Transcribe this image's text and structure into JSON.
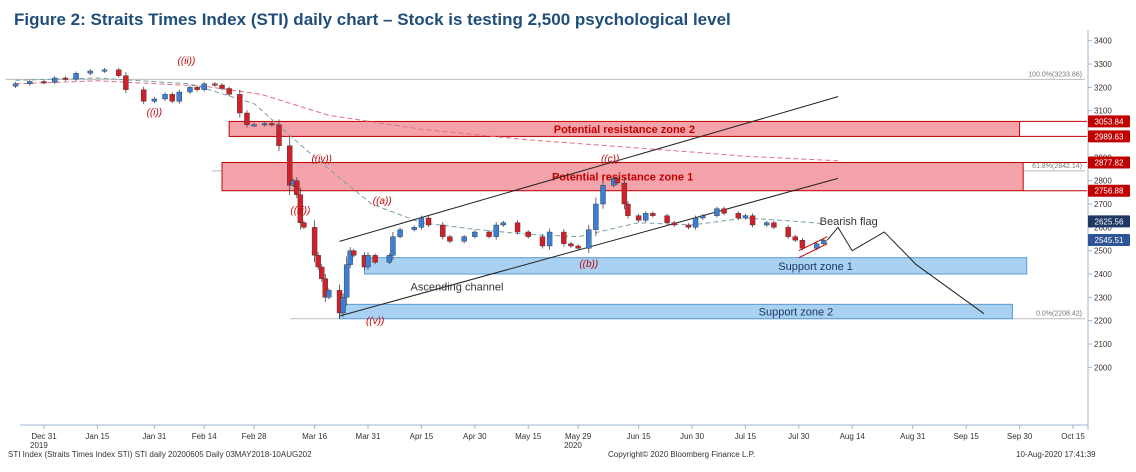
{
  "title": "Figure 2: Straits Times Index (STI) daily chart – Stock is testing 2,500 psychological level",
  "footer": {
    "left": "STI Index (Straits Times Index STI) STI daily 20200605  Daily 03MAY2018-10AUG202",
    "center": "Copyright© 2020 Bloomberg Finance L.P.",
    "right": "10-Aug-2020 17:41:39"
  },
  "colors": {
    "up": "#3a7fd5",
    "down": "#d0202a",
    "resistance_fill": "#f5a3ab",
    "resistance_border": "#c00000",
    "support_fill": "#a9d1f2",
    "support_border": "#5b9bd5",
    "title": "#1f4e79"
  },
  "chart_data": {
    "type": "candlestick",
    "y_axis": {
      "range": [
        1800,
        3420
      ],
      "ticks": [
        2000,
        2100,
        2200,
        2300,
        2400,
        2500,
        2600,
        2700,
        2800,
        2900,
        3000,
        3100,
        3200,
        3300,
        3400
      ],
      "position": "right"
    },
    "x_axis": {
      "ticks": [
        {
          "date": "2019-12-31",
          "label": "Dec 31",
          "sub": "2019"
        },
        {
          "date": "2020-01-15",
          "label": "Jan 15",
          "sub": ""
        },
        {
          "date": "2020-01-31",
          "label": "Jan 31",
          "sub": ""
        },
        {
          "date": "2020-02-14",
          "label": "Feb 14",
          "sub": ""
        },
        {
          "date": "2020-02-28",
          "label": "Feb 28",
          "sub": ""
        },
        {
          "date": "2020-03-16",
          "label": "Mar 16",
          "sub": ""
        },
        {
          "date": "2020-03-31",
          "label": "Mar 31",
          "sub": ""
        },
        {
          "date": "2020-04-15",
          "label": "Apr 15",
          "sub": ""
        },
        {
          "date": "2020-04-30",
          "label": "Apr 30",
          "sub": ""
        },
        {
          "date": "2020-05-15",
          "label": "May 15",
          "sub": ""
        },
        {
          "date": "2020-05-29",
          "label": "May 29",
          "sub": "2020"
        },
        {
          "date": "2020-06-15",
          "label": "Jun 15",
          "sub": ""
        },
        {
          "date": "2020-06-30",
          "label": "Jun 30",
          "sub": ""
        },
        {
          "date": "2020-07-15",
          "label": "Jul 15",
          "sub": ""
        },
        {
          "date": "2020-07-30",
          "label": "Jul 30",
          "sub": ""
        },
        {
          "date": "2020-08-14",
          "label": "Aug 14",
          "sub": ""
        },
        {
          "date": "2020-08-31",
          "label": "Aug 31",
          "sub": ""
        },
        {
          "date": "2020-09-15",
          "label": "Sep 15",
          "sub": ""
        },
        {
          "date": "2020-09-30",
          "label": "Sep 30",
          "sub": ""
        },
        {
          "date": "2020-10-15",
          "label": "Oct 15",
          "sub": ""
        }
      ]
    },
    "close_points": [
      [
        "2019-12-23",
        3215
      ],
      [
        "2019-12-27",
        3225
      ],
      [
        "2019-12-31",
        3222
      ],
      [
        "2020-01-03",
        3240
      ],
      [
        "2020-01-06",
        3235
      ],
      [
        "2020-01-09",
        3260
      ],
      [
        "2020-01-13",
        3270
      ],
      [
        "2020-01-17",
        3275
      ],
      [
        "2020-01-21",
        3250
      ],
      [
        "2020-01-23",
        3190
      ],
      [
        "2020-01-28",
        3140
      ],
      [
        "2020-01-31",
        3150
      ],
      [
        "2020-02-03",
        3170
      ],
      [
        "2020-02-05",
        3140
      ],
      [
        "2020-02-07",
        3180
      ],
      [
        "2020-02-10",
        3200
      ],
      [
        "2020-02-12",
        3190
      ],
      [
        "2020-02-14",
        3215
      ],
      [
        "2020-02-17",
        3210
      ],
      [
        "2020-02-19",
        3195
      ],
      [
        "2020-02-21",
        3170
      ],
      [
        "2020-02-24",
        3090
      ],
      [
        "2020-02-26",
        3040
      ],
      [
        "2020-02-28",
        3040
      ],
      [
        "2020-03-02",
        3045
      ],
      [
        "2020-03-04",
        3040
      ],
      [
        "2020-03-06",
        2950
      ],
      [
        "2020-03-09",
        2780
      ],
      [
        "2020-03-10",
        2800
      ],
      [
        "2020-03-11",
        2740
      ],
      [
        "2020-03-12",
        2620
      ],
      [
        "2020-03-13",
        2600
      ],
      [
        "2020-03-16",
        2480
      ],
      [
        "2020-03-17",
        2430
      ],
      [
        "2020-03-18",
        2380
      ],
      [
        "2020-03-19",
        2300
      ],
      [
        "2020-03-20",
        2330
      ],
      [
        "2020-03-23",
        2233
      ],
      [
        "2020-03-24",
        2300
      ],
      [
        "2020-03-25",
        2440
      ],
      [
        "2020-03-26",
        2500
      ],
      [
        "2020-03-27",
        2480
      ],
      [
        "2020-03-30",
        2430
      ],
      [
        "2020-03-31",
        2480
      ],
      [
        "2020-04-02",
        2450
      ],
      [
        "2020-04-06",
        2480
      ],
      [
        "2020-04-07",
        2560
      ],
      [
        "2020-04-09",
        2590
      ],
      [
        "2020-04-13",
        2600
      ],
      [
        "2020-04-15",
        2640
      ],
      [
        "2020-04-17",
        2610
      ],
      [
        "2020-04-21",
        2560
      ],
      [
        "2020-04-23",
        2540
      ],
      [
        "2020-04-27",
        2560
      ],
      [
        "2020-04-30",
        2580
      ],
      [
        "2020-05-04",
        2560
      ],
      [
        "2020-05-06",
        2610
      ],
      [
        "2020-05-08",
        2620
      ],
      [
        "2020-05-12",
        2580
      ],
      [
        "2020-05-15",
        2560
      ],
      [
        "2020-05-19",
        2520
      ],
      [
        "2020-05-21",
        2580
      ],
      [
        "2020-05-25",
        2530
      ],
      [
        "2020-05-27",
        2520
      ],
      [
        "2020-05-29",
        2510
      ],
      [
        "2020-06-01",
        2590
      ],
      [
        "2020-06-03",
        2700
      ],
      [
        "2020-06-05",
        2780
      ],
      [
        "2020-06-08",
        2810
      ],
      [
        "2020-06-09",
        2790
      ],
      [
        "2020-06-11",
        2700
      ],
      [
        "2020-06-12",
        2650
      ],
      [
        "2020-06-15",
        2630
      ],
      [
        "2020-06-17",
        2660
      ],
      [
        "2020-06-19",
        2650
      ],
      [
        "2020-06-23",
        2620
      ],
      [
        "2020-06-25",
        2610
      ],
      [
        "2020-06-29",
        2600
      ],
      [
        "2020-07-01",
        2640
      ],
      [
        "2020-07-03",
        2650
      ],
      [
        "2020-07-07",
        2680
      ],
      [
        "2020-07-09",
        2660
      ],
      [
        "2020-07-13",
        2640
      ],
      [
        "2020-07-15",
        2650
      ],
      [
        "2020-07-17",
        2610
      ],
      [
        "2020-07-21",
        2620
      ],
      [
        "2020-07-23",
        2600
      ],
      [
        "2020-07-27",
        2560
      ],
      [
        "2020-07-29",
        2545
      ],
      [
        "2020-07-31",
        2510
      ],
      [
        "2020-08-04",
        2530
      ],
      [
        "2020-08-06",
        2545
      ]
    ],
    "projection_path": [
      [
        "2020-08-07",
        2545
      ],
      [
        "2020-08-10",
        2600
      ],
      [
        "2020-08-14",
        2500
      ],
      [
        "2020-08-23",
        2580
      ],
      [
        "2020-09-01",
        2440
      ],
      [
        "2020-09-20",
        2230
      ]
    ],
    "resistance_zones": [
      {
        "label": "Potential resistance zone 2",
        "low": 2989.63,
        "high": 3053.84,
        "from": "2020-02-21",
        "to": "2020-09-30"
      },
      {
        "label": "Potential resistance zone 1",
        "low": 2756.88,
        "high": 2877.82,
        "from": "2020-02-19",
        "to": "2020-10-01"
      }
    ],
    "support_zones": [
      {
        "label": "Support zone 1",
        "low": 2400,
        "high": 2470,
        "from": "2020-03-30",
        "to": "2020-10-02"
      },
      {
        "label": "Support zone 2",
        "low": 2208.42,
        "high": 2270,
        "from": "2020-03-23",
        "to": "2020-09-28"
      }
    ],
    "fib_levels": [
      {
        "label": "100.0%(3233.86)",
        "value": 3233.86,
        "from": "2019-12-23",
        "to": "2020-10-15"
      },
      {
        "label": "61.8%(2842.14)",
        "value": 2842.14,
        "from": "2020-02-19",
        "to": "2020-10-15"
      },
      {
        "label": "0.0%(2208.42)",
        "value": 2208.42,
        "from": "2020-03-12",
        "to": "2020-10-15"
      }
    ],
    "channel_lines": [
      {
        "from": [
          "2020-03-23",
          2540
        ],
        "to": [
          "2020-08-10",
          3160
        ]
      },
      {
        "from": [
          "2020-03-23",
          2220
        ],
        "to": [
          "2020-08-10",
          2810
        ]
      }
    ],
    "flag_lines": [
      {
        "from": [
          "2020-07-30",
          2500
        ],
        "to": [
          "2020-08-07",
          2560
        ]
      },
      {
        "from": [
          "2020-07-30",
          2470
        ],
        "to": [
          "2020-08-07",
          2530
        ]
      }
    ],
    "ma_short": [
      [
        "2019-12-23",
        3230
      ],
      [
        "2020-01-15",
        3240
      ],
      [
        "2020-02-10",
        3215
      ],
      [
        "2020-02-28",
        3130
      ],
      [
        "2020-03-16",
        2900
      ],
      [
        "2020-04-01",
        2700
      ],
      [
        "2020-04-15",
        2620
      ],
      [
        "2020-05-01",
        2590
      ],
      [
        "2020-05-15",
        2570
      ],
      [
        "2020-05-29",
        2560
      ],
      [
        "2020-06-15",
        2620
      ],
      [
        "2020-06-30",
        2610
      ],
      [
        "2020-07-15",
        2640
      ],
      [
        "2020-07-30",
        2625
      ],
      [
        "2020-08-06",
        2615
      ]
    ],
    "ma_long": [
      [
        "2019-12-23",
        3215
      ],
      [
        "2020-01-15",
        3228
      ],
      [
        "2020-02-14",
        3205
      ],
      [
        "2020-03-01",
        3170
      ],
      [
        "2020-03-20",
        3080
      ],
      [
        "2020-04-15",
        3020
      ],
      [
        "2020-05-15",
        2975
      ],
      [
        "2020-06-15",
        2940
      ],
      [
        "2020-07-15",
        2905
      ],
      [
        "2020-08-10",
        2885
      ]
    ],
    "wave_labels": [
      {
        "text": "((ii))",
        "date": "2020-02-09",
        "value": 3300
      },
      {
        "text": "((i))",
        "date": "2020-01-31",
        "value": 3080
      },
      {
        "text": "((iv))",
        "date": "2020-03-18",
        "value": 2880
      },
      {
        "text": "((iii))",
        "date": "2020-03-12",
        "value": 2660
      },
      {
        "text": "((v))",
        "date": "2020-04-02",
        "value": 2185
      },
      {
        "text": "((a))",
        "date": "2020-04-04",
        "value": 2700
      },
      {
        "text": "((b))",
        "date": "2020-06-01",
        "value": 2430
      },
      {
        "text": "((c))",
        "date": "2020-06-07",
        "value": 2880
      }
    ],
    "text_labels": [
      {
        "text": "Ascending channel",
        "date": "2020-04-25",
        "value": 2330
      },
      {
        "text": "Bearish flag",
        "date": "2020-08-13",
        "value": 2610
      }
    ],
    "price_tags": [
      {
        "text": "3053.84",
        "value": 3053.84,
        "color": "#c00000"
      },
      {
        "text": "2989.63",
        "value": 2989.63,
        "color": "#c00000"
      },
      {
        "text": "2877.82",
        "value": 2877.82,
        "color": "#c00000"
      },
      {
        "text": "2756.88",
        "value": 2756.88,
        "color": "#c00000"
      },
      {
        "text": "2625.56",
        "value": 2625.56,
        "color": "#1f3864"
      },
      {
        "text": "2545.51",
        "value": 2545.51,
        "color": "#2f5597"
      }
    ]
  }
}
